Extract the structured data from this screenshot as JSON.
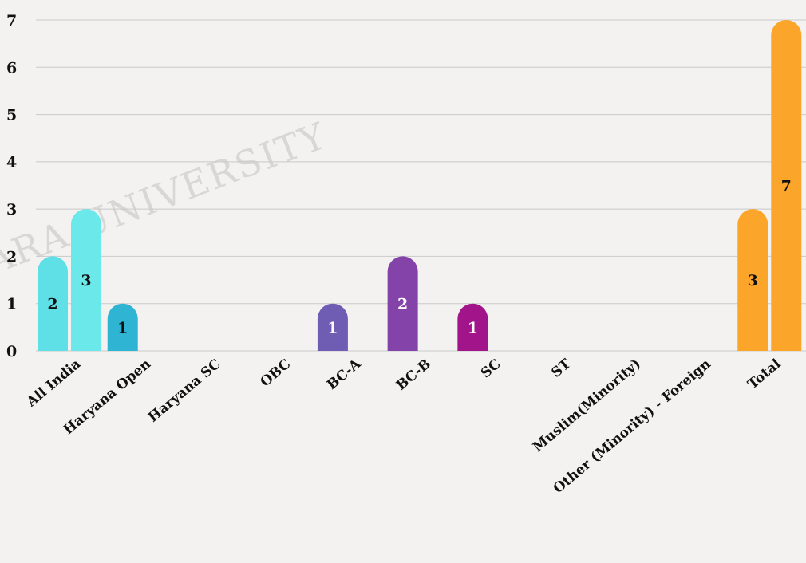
{
  "chart_data": {
    "type": "bar",
    "categories": [
      "All India",
      "Haryana Open",
      "Haryana SC",
      "OBC",
      "BC-A",
      "BC-B",
      "SC",
      "ST",
      "Muslim(Minority)",
      "Other (Minority) - Foreign",
      "Total"
    ],
    "series": [
      {
        "values": [
          2,
          1,
          0,
          0,
          1,
          2,
          1,
          0,
          0,
          0,
          3
        ]
      },
      {
        "values": [
          3,
          0,
          0,
          0,
          0,
          0,
          0,
          0,
          0,
          0,
          7
        ]
      }
    ],
    "bar_colors": [
      [
        "#5ee0e6",
        "#2fb4d4",
        "#2fb4d4",
        "#2fb4d4",
        "#6e5db2",
        "#8443a8",
        "#a2148a",
        "#a2148a",
        "#a2148a",
        "#a2148a",
        "#fba62b"
      ],
      [
        "#6be8ea",
        "#6be8ea",
        "#6be8ea",
        "#6be8ea",
        "#6be8ea",
        "#6be8ea",
        "#6be8ea",
        "#6be8ea",
        "#6be8ea",
        "#6be8ea",
        "#fba62b"
      ]
    ],
    "label_colors": [
      [
        "#111111",
        "#111111",
        "#111111",
        "#111111",
        "#ffffff",
        "#ffffff",
        "#ffffff",
        "#ffffff",
        "#ffffff",
        "#ffffff",
        "#111111"
      ],
      [
        "#111111",
        "#111111",
        "#111111",
        "#111111",
        "#111111",
        "#111111",
        "#111111",
        "#111111",
        "#111111",
        "#111111",
        "#111111"
      ]
    ],
    "yticks": [
      "0",
      "1",
      "2",
      "3",
      "4",
      "5",
      "6",
      "7"
    ],
    "ylim": [
      0,
      7
    ],
    "grid": true,
    "legend": "none",
    "title": "",
    "xlabel": "",
    "ylabel": ""
  }
}
